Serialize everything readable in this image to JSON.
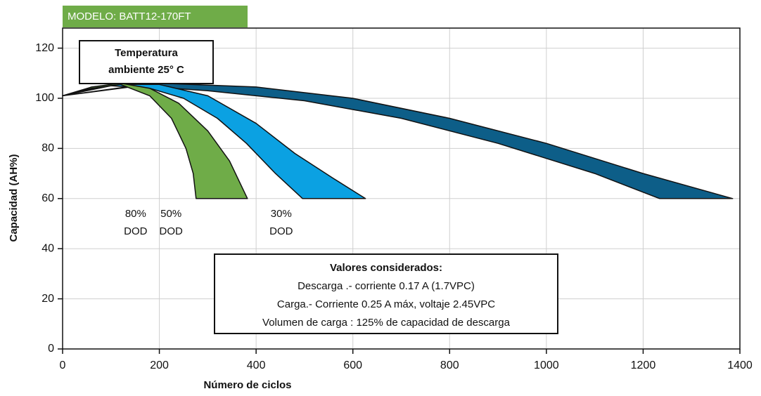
{
  "chart_data": {
    "type": "area",
    "model_label": "MODELO: BATT12-170FT",
    "x_label": "Número de ciclos",
    "y_label": "Capacidad (AH%)",
    "xlim": [
      0,
      1400
    ],
    "ylim": [
      0,
      128
    ],
    "xticks": [
      0,
      200,
      400,
      600,
      800,
      1000,
      1200,
      1400
    ],
    "yticks": [
      0,
      20,
      40,
      60,
      80,
      100,
      120
    ],
    "grid": true,
    "temperature_note": [
      "Temperatura",
      "ambiente 25° C"
    ],
    "conditions_title": "Valores considerados:",
    "conditions": [
      "Descarga .- corriente 0.17 A (1.7VPC)",
      "Carga.- Corriente 0.25 A máx, voltaje 2.45VPC",
      "Volumen de carga : 125% de capacidad de descarga"
    ],
    "series": [
      {
        "name": [
          "30%",
          "DOD"
        ],
        "color": "#0d5e88",
        "x": [
          0,
          200,
          400,
          600,
          800,
          1000,
          1200,
          1385,
          1234,
          1100,
          900,
          700,
          500,
          300,
          150,
          0
        ],
        "values": [
          101,
          106,
          104.5,
          100,
          92,
          82,
          70,
          60,
          60,
          70,
          82,
          92,
          99,
          103,
          105,
          101
        ]
      },
      {
        "name": [
          "50%",
          "DOD"
        ],
        "color": "#0ba1e2",
        "x": [
          0,
          100,
          200,
          300,
          400,
          480,
          560,
          626,
          496,
          440,
          380,
          320,
          250,
          180,
          100,
          0
        ],
        "values": [
          101,
          105.5,
          105.5,
          101,
          90,
          78,
          68,
          60,
          60,
          70,
          82,
          92,
          100,
          104,
          105,
          101
        ]
      },
      {
        "name": [
          "80%",
          "DOD"
        ],
        "color": "#6fac48",
        "x": [
          0,
          60,
          120,
          180,
          240,
          300,
          345,
          382,
          276,
          270,
          255,
          225,
          180,
          120,
          60,
          0
        ],
        "values": [
          101,
          104.5,
          106,
          104,
          98,
          87,
          75,
          60,
          60,
          70,
          80,
          92,
          101,
          105.5,
          104,
          101
        ]
      }
    ]
  }
}
